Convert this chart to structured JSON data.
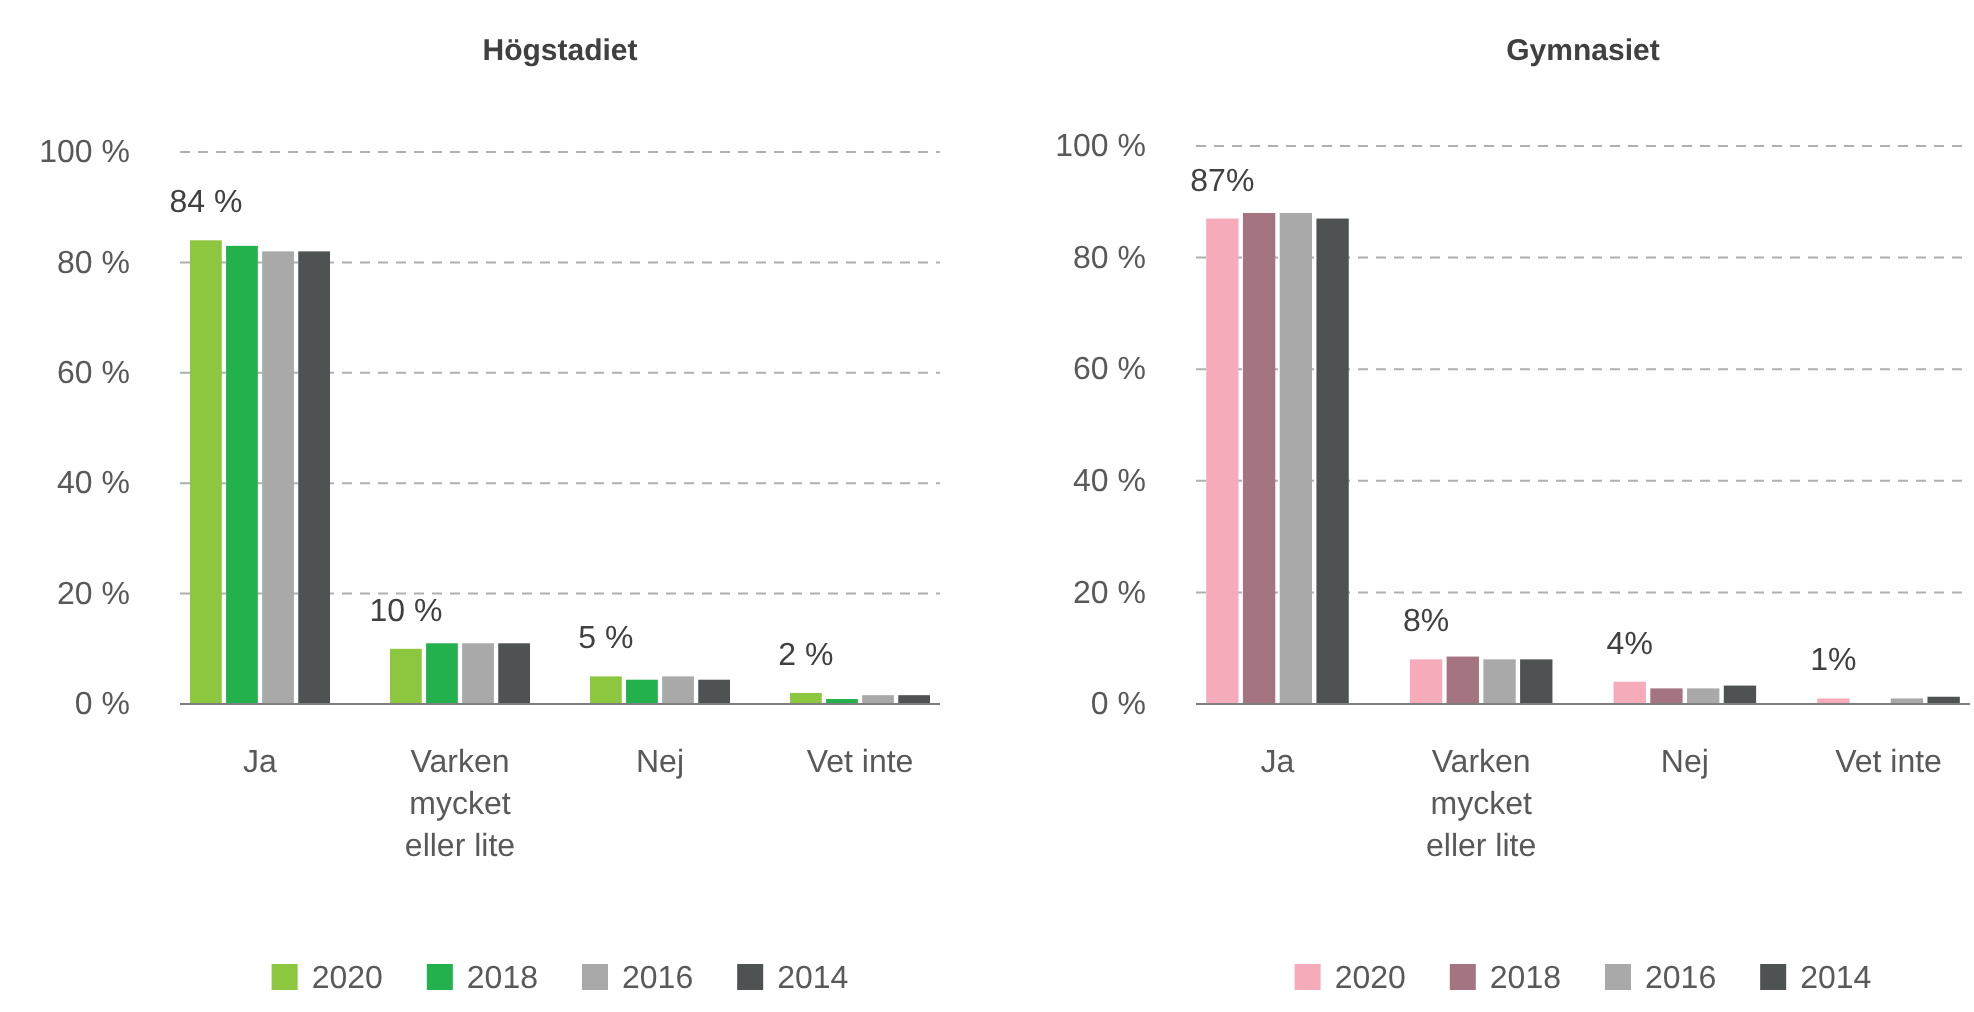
{
  "chart_data": [
    {
      "type": "bar",
      "title": "Högstadiet",
      "categories": [
        "Ja",
        "Varken mycket eller lite",
        "Nej",
        "Vet inte"
      ],
      "ylim": [
        0,
        100
      ],
      "yticks": [
        {
          "value": 0,
          "label": "0 %"
        },
        {
          "value": 20,
          "label": "20 %"
        },
        {
          "value": 40,
          "label": "40 %"
        },
        {
          "value": 60,
          "label": "60 %"
        },
        {
          "value": 80,
          "label": "80 %"
        },
        {
          "value": 100,
          "label": "100 %"
        }
      ],
      "grid": "y",
      "legend": "bottom",
      "series": [
        {
          "name": "2020",
          "color": "#8dc63f",
          "values": [
            84,
            10,
            5,
            2
          ],
          "value_labels": [
            "84 %",
            "10 %",
            "5 %",
            "2 %"
          ]
        },
        {
          "name": "2018",
          "color": "#22b14c",
          "values": [
            83,
            11,
            4.4,
            0.9
          ]
        },
        {
          "name": "2016",
          "color": "#a8a9a8",
          "values": [
            82,
            11,
            5,
            1.6
          ]
        },
        {
          "name": "2014",
          "color": "#4e5253",
          "values": [
            82,
            11,
            4.4,
            1.6
          ]
        }
      ]
    },
    {
      "type": "bar",
      "title": "Gymnasiet",
      "categories": [
        "Ja",
        "Varken mycket eller lite",
        "Nej",
        "Vet inte"
      ],
      "ylim": [
        0,
        100
      ],
      "yticks": [
        {
          "value": 0,
          "label": "0 %"
        },
        {
          "value": 20,
          "label": "20 %"
        },
        {
          "value": 40,
          "label": "40 %"
        },
        {
          "value": 60,
          "label": "60 %"
        },
        {
          "value": 80,
          "label": "80 %"
        },
        {
          "value": 100,
          "label": "100 %"
        }
      ],
      "grid": "y",
      "legend": "bottom",
      "series": [
        {
          "name": "2020",
          "color": "#f6abbb",
          "values": [
            87,
            8,
            4,
            1
          ],
          "value_labels": [
            "87%",
            "8%",
            "4%",
            "1%"
          ]
        },
        {
          "name": "2018",
          "color": "#a47581",
          "values": [
            88,
            8.5,
            2.8,
            0
          ]
        },
        {
          "name": "2016",
          "color": "#a8a9a8",
          "values": [
            88,
            8,
            2.8,
            1
          ]
        },
        {
          "name": "2014",
          "color": "#4e5253",
          "values": [
            87,
            8,
            3.3,
            1.3
          ]
        }
      ]
    }
  ]
}
